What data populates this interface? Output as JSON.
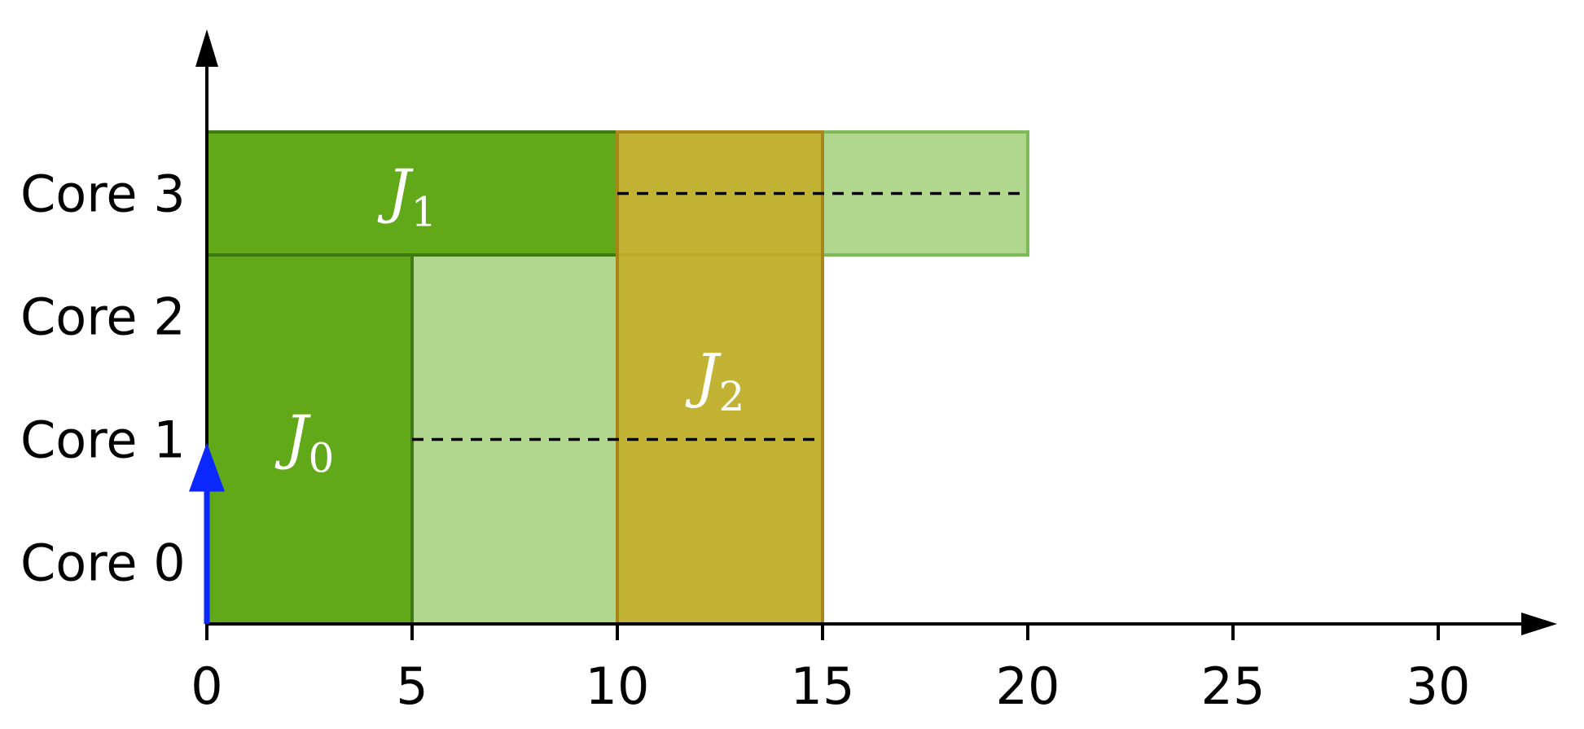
{
  "chart_data": {
    "type": "gantt",
    "y_categories": [
      "Core 0",
      "Core 1",
      "Core 2",
      "Core 3"
    ],
    "x_ticks": [
      0,
      5,
      10,
      15,
      20,
      25,
      30
    ],
    "x_tick_labels": [
      "0",
      "5",
      "10",
      "15",
      "20",
      "25",
      "30"
    ],
    "xlim": [
      0,
      33
    ],
    "ylim": [
      0,
      4
    ],
    "arrival_marker": {
      "x": 0,
      "y_top": 1.5,
      "color": "#0a28ff"
    },
    "blocks": [
      {
        "name": "J0-exec",
        "x0": 0,
        "x1": 5,
        "y0": 0,
        "y1": 3,
        "fill": "#62a91a",
        "stroke": "#3d7a14",
        "opacity": 1
      },
      {
        "name": "J0-slack",
        "x0": 5,
        "x1": 15,
        "y0": 0,
        "y1": 3,
        "fill": "#b1d68e",
        "stroke": "#3d7a14",
        "opacity": 1
      },
      {
        "name": "J1-exec",
        "x0": 0,
        "x1": 10,
        "y0": 3,
        "y1": 4,
        "fill": "#62a91a",
        "stroke": "#3d7a14",
        "opacity": 1
      },
      {
        "name": "J1-slack",
        "x0": 10,
        "x1": 20,
        "y0": 3,
        "y1": 4,
        "fill": "#b1d68e",
        "stroke": "#7fba5a",
        "opacity": 1
      },
      {
        "name": "J2-exec",
        "x0": 10,
        "x1": 15,
        "y0": 0,
        "y1": 4,
        "fill": "#c8aa1e",
        "stroke": "#a8861a",
        "opacity": 0.8
      }
    ],
    "dashed_lines": [
      {
        "x0": 10,
        "x1": 20,
        "y": 3.5
      },
      {
        "x0": 5,
        "x1": 15,
        "y": 1.5
      }
    ],
    "job_labels": [
      {
        "letter": "J",
        "sub": "0",
        "x": 2.5,
        "y": 1.5
      },
      {
        "letter": "J",
        "sub": "1",
        "x": 5,
        "y": 3.5
      },
      {
        "letter": "J",
        "sub": "2",
        "x": 12.5,
        "y": 2.0
      }
    ]
  }
}
